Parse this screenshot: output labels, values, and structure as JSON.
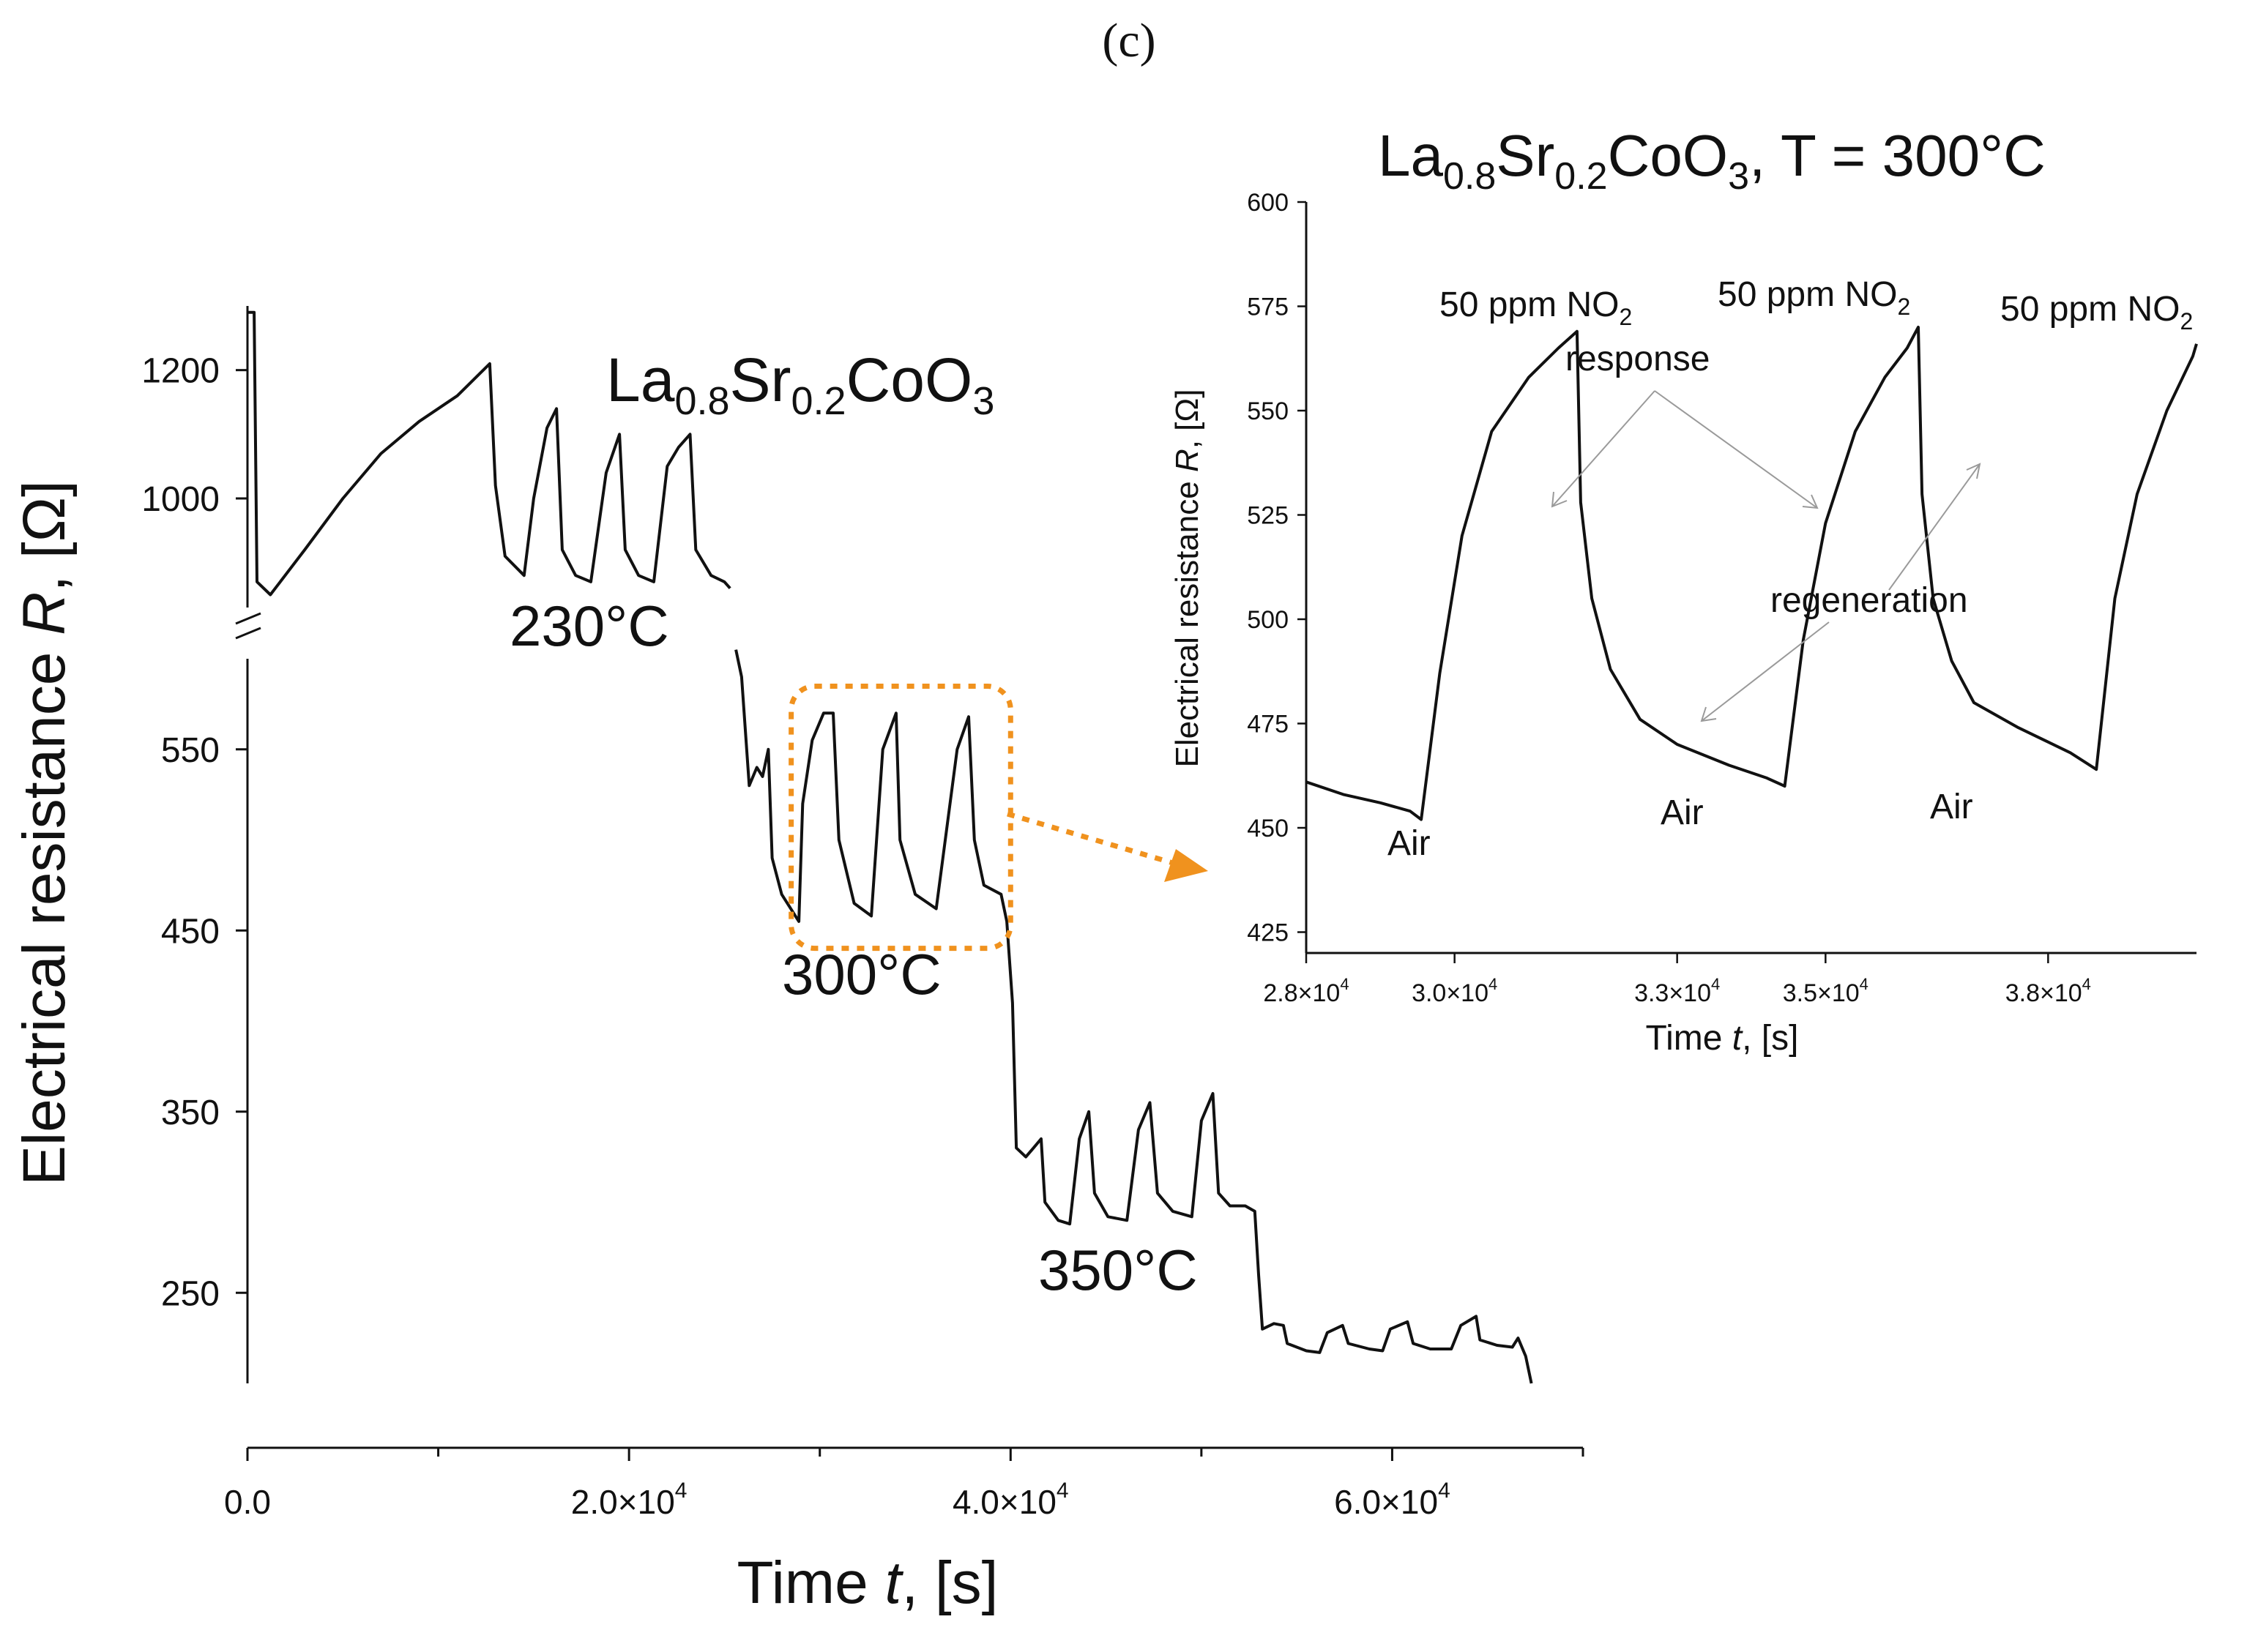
{
  "panel_label": "(c)",
  "chart_data": [
    {
      "id": "main",
      "type": "line",
      "title_parts": {
        "base1": "La",
        "sub1": "0.8",
        "base2": "Sr",
        "sub2": "0.2",
        "base3": "CoO",
        "sub3": "3"
      },
      "xlabel": {
        "main": "Time ",
        "italic": "t",
        "rest": ", [s]"
      },
      "ylabel": {
        "main": "Electrical resistance ",
        "italic": "R",
        "rest": ", [Ω]"
      },
      "xlim": [
        0,
        70000
      ],
      "x_ticks": [
        {
          "value": 0,
          "mant": "0.0",
          "exp": ""
        },
        {
          "value": 20000,
          "mant": "2.0×10",
          "exp": "4"
        },
        {
          "value": 40000,
          "mant": "4.0×10",
          "exp": "4"
        },
        {
          "value": 60000,
          "mant": "6.0×10",
          "exp": "4"
        }
      ],
      "y_broken_axis": {
        "upper_range": [
          830,
          1300
        ],
        "lower_range": [
          200,
          600
        ],
        "upper_ticks": [
          1000,
          1200
        ],
        "lower_ticks": [
          250,
          350,
          450,
          550
        ]
      },
      "annotations": [
        "230°C",
        "300°C",
        "350°C"
      ],
      "highlight_box_range": {
        "x": [
          28500,
          40000
        ],
        "y": [
          445,
          580
        ]
      },
      "series": [
        {
          "name": "230°C (upper axis)",
          "segment": "upper",
          "points": [
            [
              0,
              1290
            ],
            [
              350,
              1290
            ],
            [
              500,
              870
            ],
            [
              1200,
              850
            ],
            [
              3000,
              920
            ],
            [
              5000,
              1000
            ],
            [
              7000,
              1070
            ],
            [
              9000,
              1120
            ],
            [
              11000,
              1160
            ],
            [
              12700,
              1210
            ],
            [
              13000,
              1020
            ],
            [
              13500,
              910
            ],
            [
              14500,
              880
            ],
            [
              15000,
              1000
            ],
            [
              15700,
              1110
            ],
            [
              16200,
              1140
            ],
            [
              16500,
              920
            ],
            [
              17200,
              880
            ],
            [
              18000,
              870
            ],
            [
              18800,
              1040
            ],
            [
              19500,
              1100
            ],
            [
              19800,
              920
            ],
            [
              20500,
              880
            ],
            [
              21300,
              870
            ],
            [
              22000,
              1050
            ],
            [
              22600,
              1080
            ],
            [
              23200,
              1100
            ],
            [
              23500,
              920
            ],
            [
              24300,
              880
            ],
            [
              25000,
              870
            ],
            [
              25300,
              860
            ]
          ]
        },
        {
          "name": "lower branch (300°C and 350°C)",
          "segment": "lower",
          "points": [
            [
              25600,
              605
            ],
            [
              25900,
              590
            ],
            [
              26300,
              530
            ],
            [
              26700,
              540
            ],
            [
              27000,
              535
            ],
            [
              27300,
              550
            ],
            [
              27500,
              490
            ],
            [
              28000,
              470
            ],
            [
              28900,
              455
            ],
            [
              29100,
              520
            ],
            [
              29600,
              555
            ],
            [
              30200,
              570
            ],
            [
              30700,
              570
            ],
            [
              31000,
              500
            ],
            [
              31800,
              465
            ],
            [
              32700,
              458
            ],
            [
              33300,
              550
            ],
            [
              34000,
              570
            ],
            [
              34200,
              500
            ],
            [
              35000,
              470
            ],
            [
              36100,
              462
            ],
            [
              37200,
              550
            ],
            [
              37800,
              568
            ],
            [
              38100,
              500
            ],
            [
              38600,
              475
            ],
            [
              39500,
              470
            ],
            [
              39800,
              455
            ],
            [
              40100,
              410
            ],
            [
              40300,
              330
            ],
            [
              40800,
              325
            ],
            [
              41200,
              330
            ],
            [
              41600,
              335
            ],
            [
              41800,
              300
            ],
            [
              42500,
              290
            ],
            [
              43100,
              288
            ],
            [
              43600,
              335
            ],
            [
              44100,
              350
            ],
            [
              44400,
              305
            ],
            [
              45100,
              292
            ],
            [
              46100,
              290
            ],
            [
              46700,
              340
            ],
            [
              47300,
              355
            ],
            [
              47700,
              305
            ],
            [
              48500,
              295
            ],
            [
              49500,
              292
            ],
            [
              50000,
              345
            ],
            [
              50600,
              360
            ],
            [
              50900,
              305
            ],
            [
              51500,
              298
            ],
            [
              52300,
              298
            ],
            [
              52800,
              295
            ],
            [
              53000,
              260
            ],
            [
              53200,
              230
            ],
            [
              53800,
              233
            ],
            [
              54300,
              232
            ],
            [
              54500,
              222
            ],
            [
              55500,
              218
            ],
            [
              56200,
              217
            ],
            [
              56600,
              228
            ],
            [
              57400,
              232
            ],
            [
              57700,
              222
            ],
            [
              58800,
              219
            ],
            [
              59500,
              218
            ],
            [
              59900,
              230
            ],
            [
              60800,
              234
            ],
            [
              61100,
              222
            ],
            [
              62000,
              219
            ],
            [
              63100,
              219
            ],
            [
              63600,
              232
            ],
            [
              64400,
              237
            ],
            [
              64600,
              224
            ],
            [
              65500,
              221
            ],
            [
              66300,
              220
            ],
            [
              66600,
              225
            ],
            [
              67000,
              215
            ],
            [
              67300,
              200
            ]
          ]
        }
      ]
    },
    {
      "id": "inset",
      "type": "line",
      "title_parts": {
        "base1": "La",
        "sub1": "0.8",
        "base2": "Sr",
        "sub2": "0.2",
        "base3": "CoO",
        "sub3": "3",
        "tail": ", T = 300°C"
      },
      "xlabel": {
        "main": "Time ",
        "italic": "t",
        "rest": ", [s]"
      },
      "ylabel": {
        "main": "Electrical resistance ",
        "italic": "R",
        "rest": ", [Ω]"
      },
      "xlim": [
        28000,
        40000
      ],
      "ylim": [
        420,
        600
      ],
      "y_ticks": [
        425,
        450,
        475,
        500,
        525,
        550,
        575,
        600
      ],
      "x_ticks": [
        {
          "value": 28000,
          "mant": "2.8×10",
          "exp": "4"
        },
        {
          "value": 30000,
          "mant": "3.0×10",
          "exp": "4"
        },
        {
          "value": 33000,
          "mant": "3.3×10",
          "exp": "4"
        },
        {
          "value": 35000,
          "mant": "3.5×10",
          "exp": "4"
        },
        {
          "value": 38000,
          "mant": "3.8×10",
          "exp": "4"
        }
      ],
      "gas_labels": [
        "50 ppm NO",
        "50 ppm NO",
        "50 ppm NO"
      ],
      "gas_label_sub": "2",
      "air_labels": [
        "Air",
        "Air",
        "Air"
      ],
      "response_label": "response",
      "regeneration_label": "regeneration",
      "series": [
        {
          "name": "300°C cycle",
          "points": [
            [
              28000,
              461
            ],
            [
              28500,
              458
            ],
            [
              29000,
              456
            ],
            [
              29400,
              454
            ],
            [
              29550,
              452
            ],
            [
              29800,
              487
            ],
            [
              30100,
              520
            ],
            [
              30500,
              545
            ],
            [
              31000,
              558
            ],
            [
              31400,
              565
            ],
            [
              31650,
              569
            ],
            [
              31700,
              528
            ],
            [
              31850,
              505
            ],
            [
              32100,
              488
            ],
            [
              32500,
              476
            ],
            [
              33000,
              470
            ],
            [
              33700,
              465
            ],
            [
              34200,
              462
            ],
            [
              34450,
              460
            ],
            [
              34700,
              495
            ],
            [
              35000,
              523
            ],
            [
              35400,
              545
            ],
            [
              35800,
              558
            ],
            [
              36100,
              565
            ],
            [
              36250,
              570
            ],
            [
              36300,
              530
            ],
            [
              36450,
              505
            ],
            [
              36700,
              490
            ],
            [
              37000,
              480
            ],
            [
              37600,
              474
            ],
            [
              38300,
              468
            ],
            [
              38650,
              464
            ],
            [
              38900,
              505
            ],
            [
              39200,
              530
            ],
            [
              39600,
              550
            ],
            [
              39950,
              563
            ],
            [
              40000,
              566
            ]
          ]
        }
      ]
    }
  ],
  "colors": {
    "line": "#111111",
    "highlight": "#f0921e",
    "arrow": "#9a9a9a"
  }
}
